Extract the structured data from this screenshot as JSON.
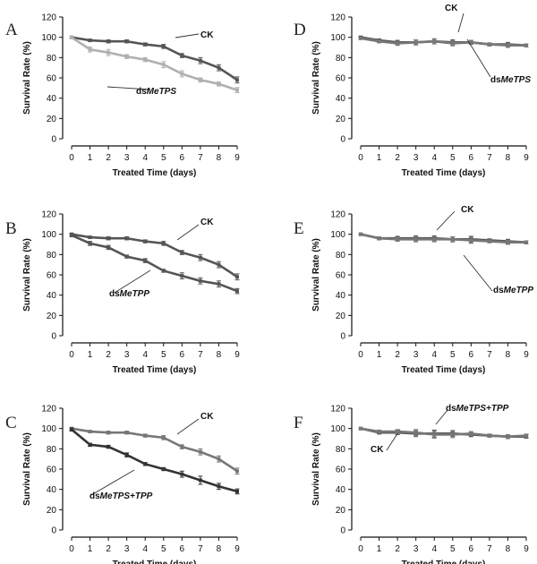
{
  "figure": {
    "panels": [
      {
        "letter": "A",
        "ylabel": "Survival Rate (%)",
        "xlabel": "Treated Time (days)"
      },
      {
        "letter": "B",
        "ylabel": "Survival Rate (%)",
        "xlabel": "Treated Time (days)"
      },
      {
        "letter": "C",
        "ylabel": "Survival Rate (%)",
        "xlabel": "Treated Time (days)"
      },
      {
        "letter": "D",
        "ylabel": "Survival Rate (%)",
        "xlabel": "Treated Time (days)"
      },
      {
        "letter": "E",
        "ylabel": "Survival Rate (%)",
        "xlabel": "Treated Time (days)"
      },
      {
        "letter": "F",
        "ylabel": "Survival Rate (%)",
        "xlabel": "Treated Time (days)"
      }
    ]
  },
  "chart_data": [
    {
      "panel": "A",
      "type": "line",
      "xlabel": "Treated Time (days)",
      "ylabel": "Survival Rate (%)",
      "x": [
        0,
        1,
        2,
        3,
        4,
        5,
        6,
        7,
        8,
        9
      ],
      "xlim": [
        0,
        9
      ],
      "ylim": [
        0,
        120
      ],
      "yticks": [
        0,
        20,
        40,
        60,
        80,
        100,
        120
      ],
      "series": [
        {
          "name": "CK",
          "name_plain": "",
          "name_italic": "",
          "color": "#555555",
          "values": [
            100,
            97,
            96,
            96,
            93,
            91,
            82,
            77,
            70,
            58
          ],
          "errors": [
            1,
            1,
            1.5,
            1.5,
            1.5,
            2,
            2,
            3,
            3,
            3
          ]
        },
        {
          "name": "dsMeTPS",
          "name_plain": "ds",
          "name_italic": "MeTPS",
          "color": "#b0b0b0",
          "values": [
            100,
            88,
            85,
            81,
            78,
            73,
            64,
            58,
            54,
            48
          ],
          "errors": [
            1,
            2.5,
            3,
            2,
            2,
            3,
            3,
            2,
            2,
            2.5
          ]
        }
      ]
    },
    {
      "panel": "B",
      "type": "line",
      "xlabel": "Treated Time (days)",
      "ylabel": "Survival Rate (%)",
      "x": [
        0,
        1,
        2,
        3,
        4,
        5,
        6,
        7,
        8,
        9
      ],
      "xlim": [
        0,
        9
      ],
      "ylim": [
        0,
        120
      ],
      "yticks": [
        0,
        20,
        40,
        60,
        80,
        100,
        120
      ],
      "series": [
        {
          "name": "CK",
          "name_plain": "",
          "name_italic": "",
          "color": "#555555",
          "values": [
            100,
            97,
            96,
            96,
            93,
            91,
            82,
            77,
            70,
            58
          ],
          "errors": [
            1,
            1,
            1.5,
            1.5,
            1.5,
            2,
            2,
            3,
            3,
            3
          ]
        },
        {
          "name": "dsMeTPP",
          "name_plain": "ds",
          "name_italic": "MeTPP",
          "color": "#555555",
          "values": [
            99,
            91,
            87,
            78,
            74,
            64,
            59,
            54,
            51,
            44
          ],
          "errors": [
            1.5,
            2,
            2,
            1.5,
            2,
            1.5,
            3,
            3,
            3,
            2.5
          ]
        }
      ]
    },
    {
      "panel": "C",
      "type": "line",
      "xlabel": "Treated Time (days)",
      "ylabel": "Survival Rate (%)",
      "x": [
        0,
        1,
        2,
        3,
        4,
        5,
        6,
        7,
        8,
        9
      ],
      "xlim": [
        0,
        9
      ],
      "ylim": [
        0,
        120
      ],
      "yticks": [
        0,
        20,
        40,
        60,
        80,
        100,
        120
      ],
      "series": [
        {
          "name": "CK",
          "name_plain": "",
          "name_italic": "",
          "color": "#777777",
          "values": [
            100,
            97,
            96,
            96,
            93,
            91,
            82,
            77,
            70,
            58
          ],
          "errors": [
            1,
            1,
            1.5,
            1.5,
            1.5,
            2,
            2,
            3,
            3,
            3
          ]
        },
        {
          "name": "dsMeTPS+TPP",
          "name_plain": "ds",
          "name_italic": "MeTPS+TPP",
          "color": "#333333",
          "values": [
            99,
            84,
            82,
            74,
            65,
            60,
            55,
            49,
            43,
            38
          ],
          "errors": [
            1.5,
            1.5,
            1.5,
            2,
            1.5,
            1.5,
            3,
            4,
            3,
            2.5
          ]
        }
      ]
    },
    {
      "panel": "D",
      "type": "line",
      "xlabel": "Treated Time (days)",
      "ylabel": "Survival Rate (%)",
      "x": [
        0,
        1,
        2,
        3,
        4,
        5,
        6,
        7,
        8,
        9
      ],
      "xlim": [
        0,
        9
      ],
      "ylim": [
        0,
        120
      ],
      "yticks": [
        0,
        20,
        40,
        60,
        80,
        100,
        120
      ],
      "series": [
        {
          "name": "CK",
          "name_plain": "",
          "name_italic": "",
          "color": "#555555",
          "values": [
            100,
            97,
            95,
            95,
            96,
            95,
            95,
            93,
            93,
            92
          ],
          "errors": [
            1,
            1.5,
            2,
            2.5,
            2.5,
            2.5,
            2,
            1.5,
            2,
            1.5
          ]
        },
        {
          "name": "dsMeTPS",
          "name_plain": "ds",
          "name_italic": "MeTPS",
          "color": "#777777",
          "values": [
            99,
            96,
            94,
            95,
            96,
            94,
            95,
            93,
            92,
            92
          ],
          "errors": [
            1,
            1.5,
            2,
            2.5,
            2.5,
            2.5,
            2,
            1.5,
            2,
            1.5
          ]
        }
      ]
    },
    {
      "panel": "E",
      "type": "line",
      "xlabel": "Treated Time (days)",
      "ylabel": "Survival Rate (%)",
      "x": [
        0,
        1,
        2,
        3,
        4,
        5,
        6,
        7,
        8,
        9
      ],
      "xlim": [
        0,
        9
      ],
      "ylim": [
        0,
        120
      ],
      "yticks": [
        0,
        20,
        40,
        60,
        80,
        100,
        120
      ],
      "series": [
        {
          "name": "CK",
          "name_plain": "",
          "name_italic": "",
          "color": "#555555",
          "values": [
            100,
            96,
            96,
            96,
            96,
            95,
            95,
            94,
            93,
            92
          ],
          "errors": [
            1,
            1.5,
            2,
            2.5,
            2.5,
            2.5,
            3,
            1.5,
            2,
            1.5
          ]
        },
        {
          "name": "dsMeTPP",
          "name_plain": "ds",
          "name_italic": "MeTPP",
          "color": "#777777",
          "values": [
            100,
            96,
            95,
            95,
            95,
            95,
            94,
            93,
            92,
            92
          ],
          "errors": [
            1,
            1.5,
            2,
            2.5,
            2.5,
            2.5,
            3,
            1.5,
            2,
            1.5
          ]
        }
      ]
    },
    {
      "panel": "F",
      "type": "line",
      "xlabel": "Treated Time (days)",
      "ylabel": "Survival Rate (%)",
      "x": [
        0,
        1,
        2,
        3,
        4,
        5,
        6,
        7,
        8,
        9
      ],
      "xlim": [
        0,
        9
      ],
      "ylim": [
        0,
        120
      ],
      "yticks": [
        0,
        20,
        40,
        60,
        80,
        100,
        120
      ],
      "series": [
        {
          "name": "CK",
          "name_plain": "",
          "name_italic": "",
          "color": "#555555",
          "values": [
            100,
            96,
            96,
            95,
            95,
            95,
            94,
            93,
            92,
            92
          ],
          "errors": [
            1,
            1.5,
            2,
            3,
            3.5,
            3,
            2,
            1.5,
            2,
            1.5
          ]
        },
        {
          "name": "dsMeTPS+TPP",
          "name_plain": "ds",
          "name_italic": "MeTPS+TPP",
          "color": "#777777",
          "values": [
            100,
            97,
            97,
            96,
            94,
            94,
            95,
            93,
            92,
            93
          ],
          "errors": [
            1,
            1.5,
            2,
            3,
            3.5,
            3,
            2,
            1.5,
            2,
            1.5
          ]
        }
      ]
    }
  ]
}
